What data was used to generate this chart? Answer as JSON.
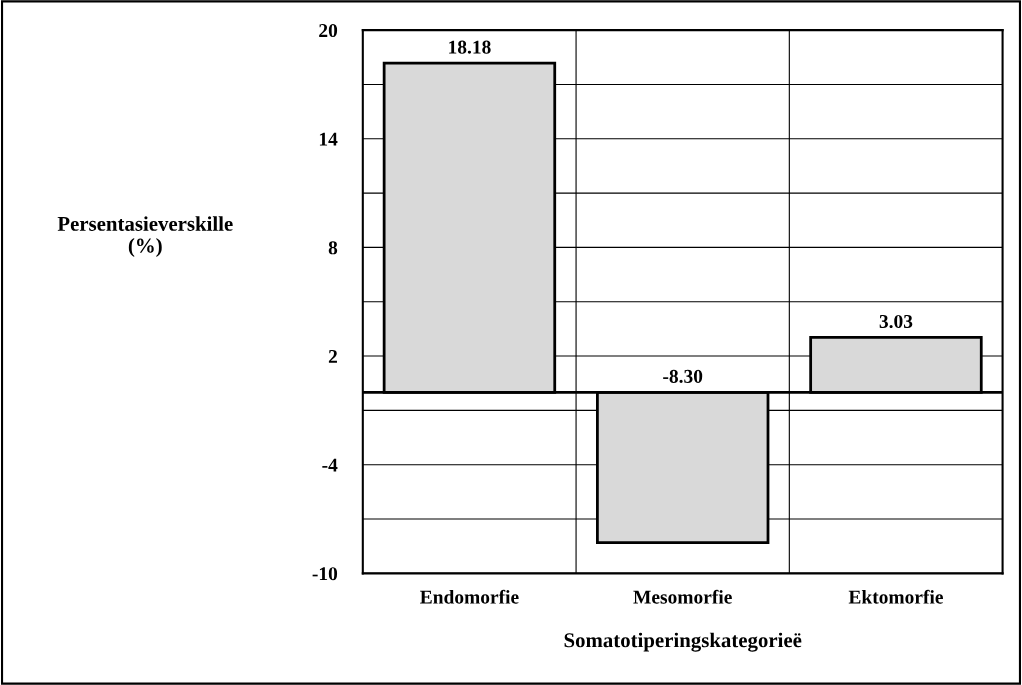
{
  "chart_data": {
    "type": "bar",
    "categories": [
      "Endomorfie",
      "Mesomorfie",
      "Ektomorfie"
    ],
    "values": [
      18.18,
      -8.3,
      3.03
    ],
    "value_labels": [
      "18.18",
      "-8.30",
      "3.03"
    ],
    "color": "#d9d9d9",
    "xlabel": "Somatotiperingskategorieë",
    "ylabel": "Persentasieverskille\n(%)",
    "ylim": [
      -10,
      20
    ],
    "yticks": [
      -10,
      {
        "value": -7,
        "label": null
      },
      -4,
      {
        "value": -1,
        "label": null
      },
      2,
      {
        "value": 5,
        "label": null
      },
      8,
      {
        "value": 11,
        "label": null
      },
      14,
      {
        "value": 17,
        "label": null
      },
      20
    ],
    "grid": true
  }
}
